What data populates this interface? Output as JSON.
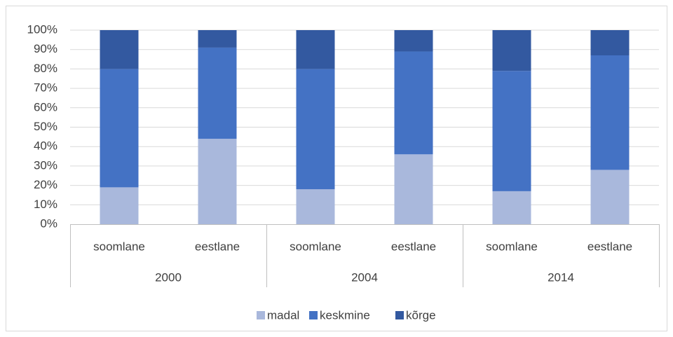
{
  "chart_data": {
    "type": "stacked_bar",
    "categories": [
      "soomlane",
      "eestlane",
      "soomlane",
      "eestlane",
      "soomlane",
      "eestlane"
    ],
    "groups": [
      "2000",
      "2004",
      "2014"
    ],
    "series": [
      {
        "name": "madal",
        "color": "#a9b8dc",
        "values": [
          19,
          44,
          18,
          36,
          17,
          28
        ]
      },
      {
        "name": "keskmine",
        "color": "#4472c4",
        "values": [
          61,
          47,
          62,
          53,
          62,
          59
        ]
      },
      {
        "name": "kõrge",
        "color": "#3359a0",
        "values": [
          20,
          9,
          20,
          11,
          21,
          13
        ]
      }
    ],
    "ylim": [
      0,
      100
    ],
    "yticks": [
      {
        "value": 0,
        "label": "0%"
      },
      {
        "value": 10,
        "label": "10%"
      },
      {
        "value": 20,
        "label": "20%"
      },
      {
        "value": 30,
        "label": "30%"
      },
      {
        "value": 40,
        "label": "40%"
      },
      {
        "value": 50,
        "label": "50%"
      },
      {
        "value": 60,
        "label": "60%"
      },
      {
        "value": 70,
        "label": "70%"
      },
      {
        "value": 80,
        "label": "80%"
      },
      {
        "value": 90,
        "label": "90%"
      },
      {
        "value": 100,
        "label": "100%"
      }
    ],
    "grid": true,
    "legend": "bottom"
  }
}
